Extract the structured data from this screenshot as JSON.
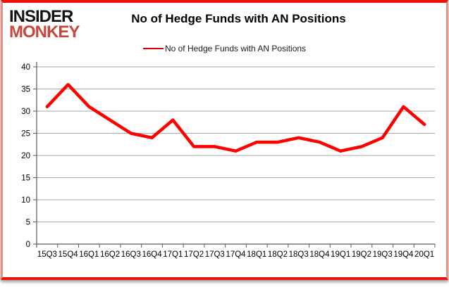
{
  "logo": {
    "line1": "INSIDER",
    "line2": "MONKEY"
  },
  "title": "No of Hedge Funds with AN Positions",
  "legend": {
    "label": "No of Hedge Funds with AN Positions",
    "color": "#e00000"
  },
  "colors": {
    "series_line": "#fe0000",
    "gridline": "#a6a6a6",
    "axis": "#595959",
    "tick_text": "#000000",
    "frame_border": "#ed100b",
    "logo_monkey": "#c8473a"
  },
  "chart_data": {
    "type": "line",
    "title": "No of Hedge Funds with AN Positions",
    "categories": [
      "15Q3",
      "15Q4",
      "16Q1",
      "16Q2",
      "16Q3",
      "16Q4",
      "17Q1",
      "17Q2",
      "17Q3",
      "17Q4",
      "18Q1",
      "18Q2",
      "18Q3",
      "18Q4",
      "19Q1",
      "19Q2",
      "19Q3",
      "19Q4",
      "20Q1"
    ],
    "series": [
      {
        "name": "No of Hedge Funds with AN Positions",
        "color": "#fe0000",
        "values": [
          31,
          36,
          31,
          28,
          25,
          24,
          28,
          22,
          22,
          21,
          23,
          23,
          24,
          23,
          21,
          22,
          24,
          31,
          27
        ]
      }
    ],
    "xlabel": "",
    "ylabel": "",
    "ylim": [
      0,
      40
    ],
    "ytick_interval": 5,
    "grid": "horizontal",
    "legend_position": "top"
  }
}
